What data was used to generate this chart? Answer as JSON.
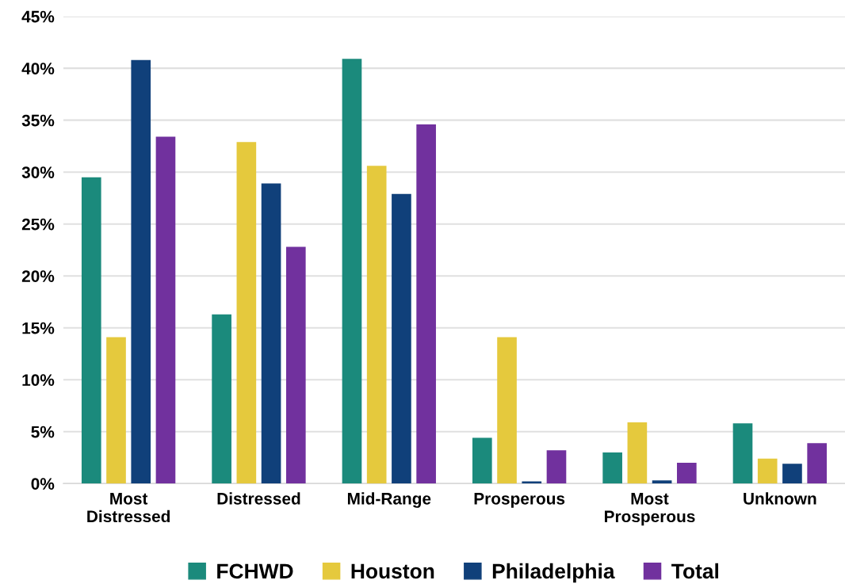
{
  "chart_data": {
    "type": "bar",
    "categories": [
      "Most\nDistressed",
      "Distressed",
      "Mid-Range",
      "Prosperous",
      "Most\nProsperous",
      "Unknown"
    ],
    "series": [
      {
        "name": "FCHWD",
        "color": "#1b8a7c",
        "values": [
          29.5,
          16.3,
          40.9,
          4.4,
          3.0,
          5.8
        ]
      },
      {
        "name": "Houston",
        "color": "#e5c93d",
        "values": [
          14.1,
          32.9,
          30.6,
          14.1,
          5.9,
          2.4
        ]
      },
      {
        "name": "Philadelphia",
        "color": "#10407a",
        "values": [
          40.8,
          28.9,
          27.9,
          0.2,
          0.3,
          1.9
        ]
      },
      {
        "name": "Total",
        "color": "#71319e",
        "values": [
          33.4,
          22.8,
          34.6,
          3.2,
          2.0,
          3.9
        ]
      }
    ],
    "ylim": [
      0,
      45
    ],
    "yticks": [
      {
        "value": 0,
        "label": "0%"
      },
      {
        "value": 5,
        "label": "5%"
      },
      {
        "value": 10,
        "label": "10%"
      },
      {
        "value": 15,
        "label": "15%"
      },
      {
        "value": 20,
        "label": "20%"
      },
      {
        "value": 25,
        "label": "25%"
      },
      {
        "value": 30,
        "label": "30%"
      },
      {
        "value": 35,
        "label": "35%"
      },
      {
        "value": 40,
        "label": "40%"
      },
      {
        "value": 45,
        "label": "45%"
      }
    ],
    "grid": "y",
    "legend": "bottom"
  }
}
